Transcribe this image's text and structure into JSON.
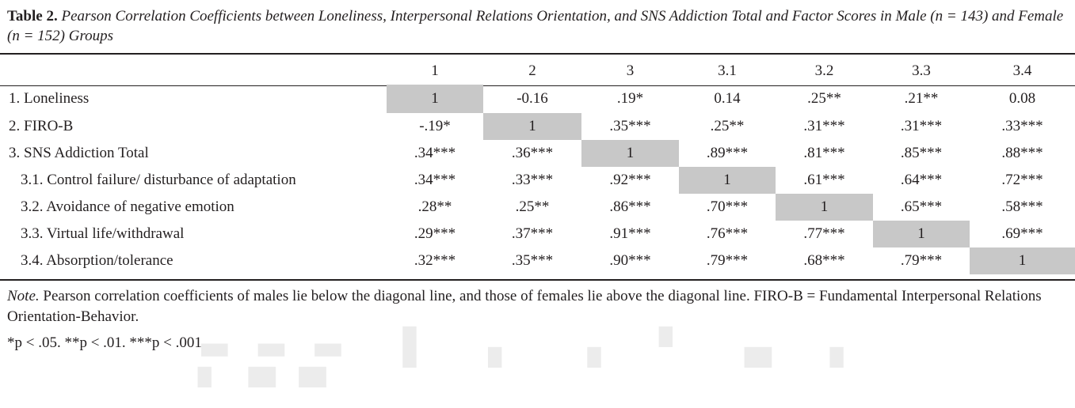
{
  "caption": {
    "label": "Table 2.",
    "text": " Pearson Correlation Coefficients between Loneliness, Interpersonal Relations Orientation, and SNS Addiction Total and Factor Scores in Male (n = 143) and Female (n = 152) Groups"
  },
  "header": [
    "",
    "1",
    "2",
    "3",
    "3.1",
    "3.2",
    "3.3",
    "3.4"
  ],
  "rows": [
    {
      "label": "1. Loneliness",
      "sub": false,
      "cells": [
        "1",
        "-0.16",
        ".19*",
        "0.14",
        ".25**",
        ".21**",
        "0.08"
      ]
    },
    {
      "label": "2. FIRO-B",
      "sub": false,
      "cells": [
        "-.19*",
        "1",
        ".35***",
        ".25**",
        ".31***",
        ".31***",
        ".33***"
      ]
    },
    {
      "label": "3. SNS Addiction Total",
      "sub": false,
      "cells": [
        ".34***",
        ".36***",
        "1",
        ".89***",
        ".81***",
        ".85***",
        ".88***"
      ]
    },
    {
      "label": "3.1. Control failure/ disturbance of adaptation",
      "sub": true,
      "cells": [
        ".34***",
        ".33***",
        ".92***",
        "1",
        ".61***",
        ".64***",
        ".72***"
      ]
    },
    {
      "label": "3.2. Avoidance of negative emotion",
      "sub": true,
      "cells": [
        ".28**",
        ".25**",
        ".86***",
        ".70***",
        "1",
        ".65***",
        ".58***"
      ]
    },
    {
      "label": "3.3. Virtual life/withdrawal",
      "sub": true,
      "cells": [
        ".29***",
        ".37***",
        ".91***",
        ".76***",
        ".77***",
        "1",
        ".69***"
      ]
    },
    {
      "label": "3.4. Absorption/tolerance",
      "sub": true,
      "cells": [
        ".32***",
        ".35***",
        ".90***",
        ".79***",
        ".68***",
        ".79***",
        "1"
      ]
    }
  ],
  "note": {
    "label": "Note.",
    "text": " Pearson correlation coefficients of males lie below the diagonal line, and those of females lie above the diagonal line. FIRO-B = Fundamental Interpersonal Relations Orientation-Behavior.",
    "significance": "*p < .05. **p < .01. ***p < .001."
  },
  "colors": {
    "diagonal_shade": "#c8c8c8",
    "text": "#231f20"
  }
}
